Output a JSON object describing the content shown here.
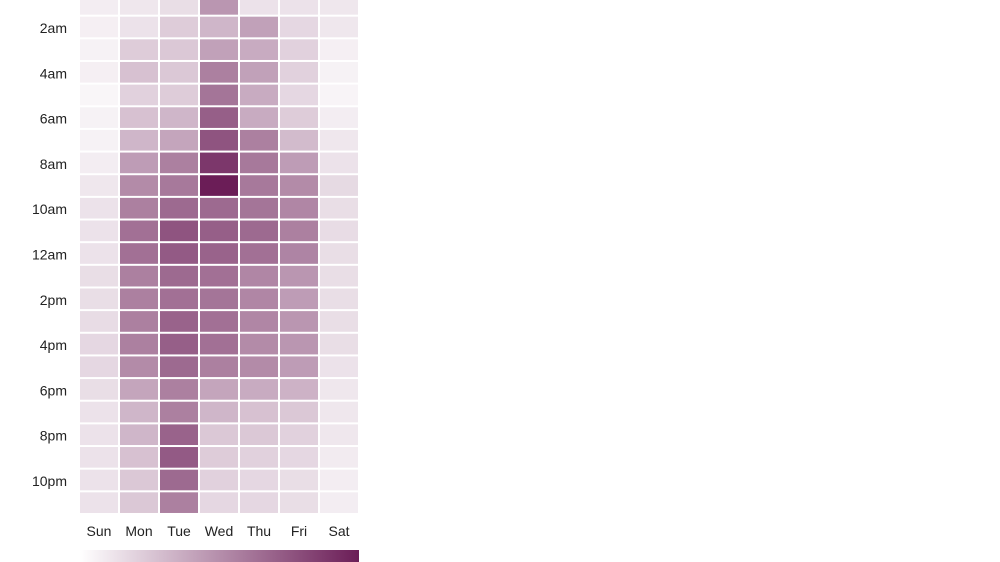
{
  "chart_data": {
    "type": "heatmap",
    "title": "",
    "xlabel": "",
    "ylabel": "",
    "x_categories": [
      "Sun",
      "Mon",
      "Tue",
      "Wed",
      "Thu",
      "Fri",
      "Sat"
    ],
    "y_tick_labels": [
      "2am",
      "4am",
      "6am",
      "8am",
      "10am",
      "12am",
      "2pm",
      "4pm",
      "6pm",
      "8pm",
      "10pm"
    ],
    "rows_first_hour": "1am",
    "value_scale": "relative intensity 0–1 (no numeric legend printed)",
    "color_low": "#ffffff",
    "color_high": "#6b1d57",
    "values": [
      [
        0.05,
        0.08,
        0.12,
        0.45,
        0.1,
        0.1,
        0.08
      ],
      [
        0.04,
        0.1,
        0.2,
        0.3,
        0.4,
        0.15,
        0.08
      ],
      [
        0.03,
        0.2,
        0.22,
        0.4,
        0.35,
        0.18,
        0.04
      ],
      [
        0.04,
        0.25,
        0.22,
        0.55,
        0.4,
        0.18,
        0.03
      ],
      [
        0.01,
        0.18,
        0.2,
        0.6,
        0.35,
        0.15,
        0.02
      ],
      [
        0.03,
        0.25,
        0.3,
        0.7,
        0.35,
        0.2,
        0.05
      ],
      [
        0.03,
        0.3,
        0.38,
        0.75,
        0.55,
        0.28,
        0.08
      ],
      [
        0.05,
        0.42,
        0.55,
        0.88,
        0.58,
        0.42,
        0.1
      ],
      [
        0.08,
        0.5,
        0.58,
        1.0,
        0.58,
        0.5,
        0.14
      ],
      [
        0.1,
        0.55,
        0.65,
        0.65,
        0.6,
        0.52,
        0.12
      ],
      [
        0.1,
        0.62,
        0.75,
        0.7,
        0.65,
        0.55,
        0.13
      ],
      [
        0.1,
        0.62,
        0.72,
        0.68,
        0.62,
        0.53,
        0.12
      ],
      [
        0.12,
        0.55,
        0.65,
        0.62,
        0.52,
        0.45,
        0.12
      ],
      [
        0.12,
        0.55,
        0.62,
        0.6,
        0.52,
        0.42,
        0.12
      ],
      [
        0.13,
        0.55,
        0.68,
        0.62,
        0.52,
        0.45,
        0.12
      ],
      [
        0.15,
        0.55,
        0.7,
        0.62,
        0.5,
        0.45,
        0.12
      ],
      [
        0.15,
        0.5,
        0.65,
        0.55,
        0.5,
        0.42,
        0.1
      ],
      [
        0.12,
        0.38,
        0.55,
        0.38,
        0.35,
        0.32,
        0.08
      ],
      [
        0.1,
        0.3,
        0.55,
        0.3,
        0.25,
        0.22,
        0.08
      ],
      [
        0.1,
        0.3,
        0.68,
        0.22,
        0.22,
        0.18,
        0.08
      ],
      [
        0.1,
        0.25,
        0.72,
        0.2,
        0.18,
        0.15,
        0.06
      ],
      [
        0.1,
        0.22,
        0.65,
        0.18,
        0.15,
        0.12,
        0.05
      ],
      [
        0.1,
        0.22,
        0.55,
        0.15,
        0.15,
        0.12,
        0.05
      ]
    ],
    "legend": {
      "type": "color-gradient",
      "placement": "bottom"
    },
    "grid": false
  }
}
